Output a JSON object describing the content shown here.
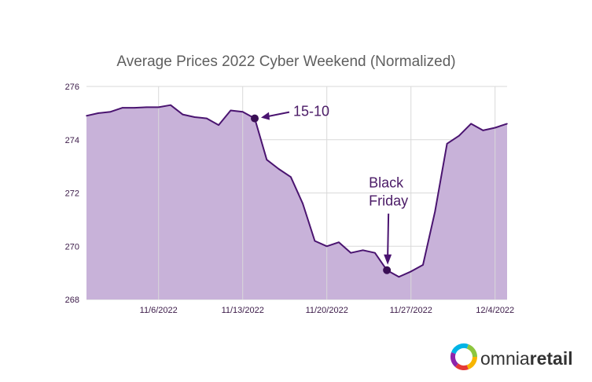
{
  "chart_data": {
    "type": "area",
    "title": "Average Prices 2022 Cyber Weekend (Normalized)",
    "xlabel": "",
    "ylabel": "",
    "ylim": [
      268,
      276
    ],
    "y_ticks": [
      "268",
      "270",
      "272",
      "274",
      "276"
    ],
    "x_ticks": [
      "11/6/2022",
      "11/13/2022",
      "11/20/2022",
      "11/27/2022",
      "12/4/2022"
    ],
    "x_range": [
      "2022-10-31",
      "2022-12-05"
    ],
    "grid": true,
    "colors": {
      "line": "#4a1470",
      "fill": "#c8b2d9",
      "grid": "#d9d9d9",
      "marker": "#3a0f55"
    },
    "series": [
      {
        "x": [
          "2022-10-31",
          "2022-11-01",
          "2022-11-02",
          "2022-11-03",
          "2022-11-04",
          "2022-11-05",
          "2022-11-06",
          "2022-11-07",
          "2022-11-08",
          "2022-11-09",
          "2022-11-10",
          "2022-11-11",
          "2022-11-12",
          "2022-11-13",
          "2022-11-14",
          "2022-11-15",
          "2022-11-16",
          "2022-11-17",
          "2022-11-18",
          "2022-11-19",
          "2022-11-20",
          "2022-11-21",
          "2022-11-22",
          "2022-11-23",
          "2022-11-24",
          "2022-11-25",
          "2022-11-26",
          "2022-11-27",
          "2022-11-28",
          "2022-11-29",
          "2022-11-30",
          "2022-12-01",
          "2022-12-02",
          "2022-12-03",
          "2022-12-04",
          "2022-12-05"
        ],
        "values": [
          274.9,
          275.0,
          275.05,
          275.2,
          275.2,
          275.22,
          275.22,
          275.3,
          274.95,
          274.85,
          274.8,
          274.55,
          275.1,
          275.05,
          274.8,
          273.25,
          272.9,
          272.6,
          271.6,
          270.2,
          270.0,
          270.15,
          269.75,
          269.85,
          269.75,
          269.1,
          268.85,
          269.05,
          269.3,
          271.3,
          273.85,
          274.15,
          274.6,
          274.35,
          274.45,
          274.6
        ]
      }
    ],
    "annotations": [
      {
        "text": "15-10",
        "x": "2022-11-14",
        "y": 274.8
      },
      {
        "text": "Black Friday",
        "lines": [
          "Black",
          "Friday"
        ],
        "x": "2022-11-25",
        "y": 269.1
      }
    ]
  },
  "brand": {
    "name_light": "omnia",
    "name_bold": "retail",
    "logo_colors": [
      "#00b4e6",
      "#8dc63f",
      "#f7b500",
      "#e53935",
      "#8e24aa"
    ]
  }
}
